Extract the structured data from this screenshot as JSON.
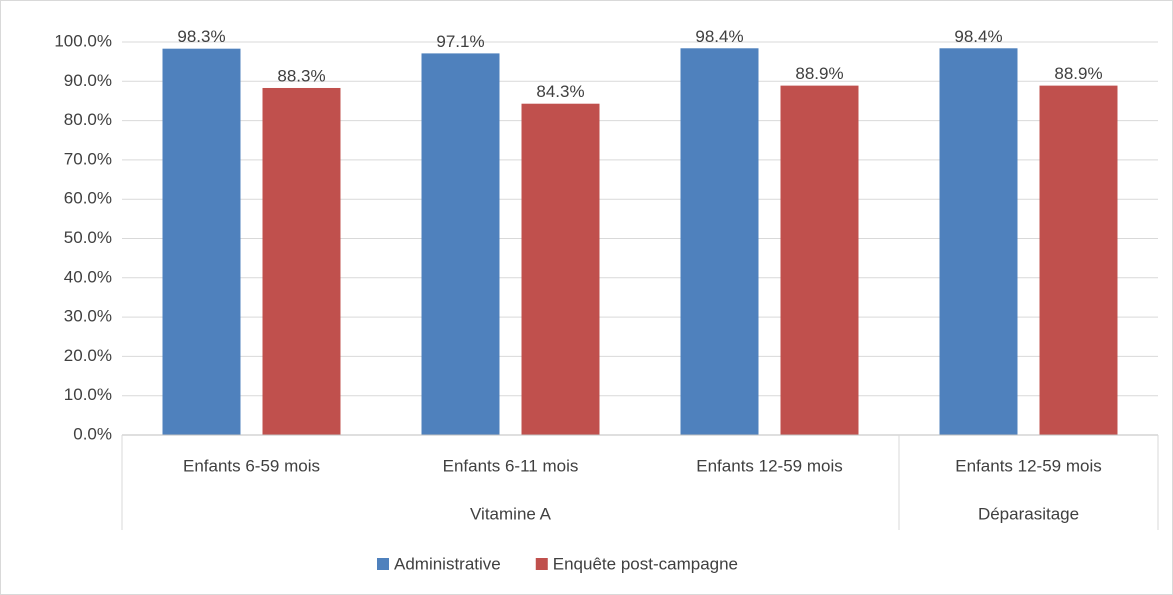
{
  "chart_data": {
    "type": "bar",
    "groups": [
      {
        "name": "Vitamine A",
        "categories": [
          "Enfants 6-59 mois",
          "Enfants 6-11 mois",
          "Enfants 12-59 mois"
        ]
      },
      {
        "name": "Déparasitage",
        "categories": [
          "Enfants 12-59 mois"
        ]
      }
    ],
    "series": [
      {
        "name": "Administrative",
        "color": "#4f81bd",
        "values": [
          98.3,
          97.1,
          98.4,
          98.4
        ],
        "value_labels": [
          "98.3%",
          "97.1%",
          "98.4%",
          "98.4%"
        ]
      },
      {
        "name": "Enquête post-campagne",
        "color": "#c0504d",
        "values": [
          88.3,
          84.3,
          88.9,
          88.9
        ],
        "value_labels": [
          "88.3%",
          "84.3%",
          "88.9%",
          "88.9%"
        ]
      }
    ],
    "ylim": [
      0,
      100
    ],
    "yticks": [
      {
        "value": 0,
        "label": "0.0%"
      },
      {
        "value": 10,
        "label": "10.0%"
      },
      {
        "value": 20,
        "label": "20.0%"
      },
      {
        "value": 30,
        "label": "30.0%"
      },
      {
        "value": 40,
        "label": "40.0%"
      },
      {
        "value": 50,
        "label": "50.0%"
      },
      {
        "value": 60,
        "label": "60.0%"
      },
      {
        "value": 70,
        "label": "70.0%"
      },
      {
        "value": 80,
        "label": "80.0%"
      },
      {
        "value": 90,
        "label": "90.0%"
      },
      {
        "value": 100,
        "label": "100.0%"
      }
    ],
    "grid": true,
    "legend": "bottom"
  }
}
